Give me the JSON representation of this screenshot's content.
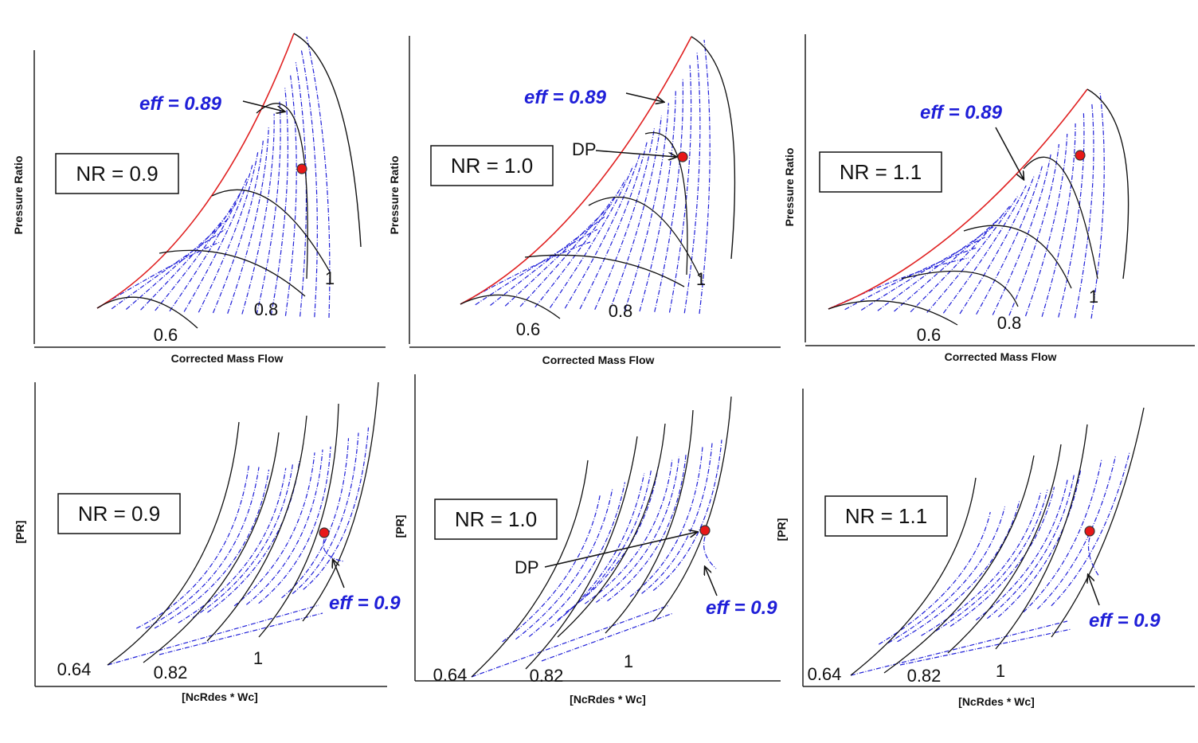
{
  "colors": {
    "contour": "#1f1fd8",
    "surge": "#e02020",
    "speed": "#111111",
    "dp_fill": "#e81818",
    "dp_stroke": "#333333"
  },
  "chart_data": [
    {
      "type": "line",
      "x_label": "Corrected Mass Flow",
      "y_label": "Pressure Ratio",
      "nr_label": "NR = 0.9",
      "speed_labels": [
        "0.6",
        "0.8",
        "1"
      ],
      "eff_label": "eff = 0.89",
      "dp_label": ""
    },
    {
      "type": "line",
      "x_label": "Corrected Mass Flow",
      "y_label": "Pressure Ratio",
      "nr_label": "NR = 1.0",
      "speed_labels": [
        "0.6",
        "0.8",
        "1"
      ],
      "eff_label": "eff = 0.89",
      "dp_label": "DP"
    },
    {
      "type": "line",
      "x_label": "Corrected Mass Flow",
      "y_label": "Pressure Ratio",
      "nr_label": "NR = 1.1",
      "speed_labels": [
        "0.6",
        "0.8",
        "1"
      ],
      "eff_label": "eff = 0.89",
      "dp_label": ""
    },
    {
      "type": "line",
      "x_label": "[NcRdes * Wc]",
      "y_label": "[PR]",
      "nr_label": "NR = 0.9",
      "speed_labels": [
        "0.64",
        "0.82",
        "1"
      ],
      "eff_label": "eff = 0.9",
      "dp_label": ""
    },
    {
      "type": "line",
      "x_label": "[NcRdes * Wc]",
      "y_label": "[PR]",
      "nr_label": "NR = 1.0",
      "speed_labels": [
        "0.64",
        "0.82",
        "1"
      ],
      "eff_label": "eff = 0.9",
      "dp_label": "DP"
    },
    {
      "type": "line",
      "x_label": "[NcRdes * Wc]",
      "y_label": "[PR]",
      "nr_label": "NR = 1.1",
      "speed_labels": [
        "0.64",
        "0.82",
        "1"
      ],
      "eff_label": "eff = 0.9",
      "dp_label": ""
    }
  ]
}
